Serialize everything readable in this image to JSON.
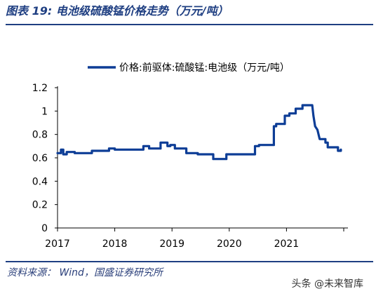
{
  "header": {
    "title": "图表 19:  电池级硫酸锰价格走势（万元/吨）"
  },
  "footer": {
    "source": "资料来源：  Wind，国盛证券研究所",
    "watermark": "头条 @未来智库"
  },
  "colors": {
    "line": "#0d3d96",
    "accent": "#1f3f82",
    "axis": "#000000"
  },
  "chart_data": {
    "type": "line",
    "title": "",
    "xlabel": "",
    "ylabel": "",
    "ylim": [
      0,
      1.2
    ],
    "yticks": [
      "0",
      "0.2",
      "0.4",
      "0.6",
      "0.8",
      "1",
      "1.2"
    ],
    "xlim": [
      2017,
      2022
    ],
    "xticks": [
      "2017",
      "2018",
      "2019",
      "2020",
      "2021"
    ],
    "grid": false,
    "legend_position": "top-center",
    "series": [
      {
        "name": "价格:前驱体:硫酸锰:电池级（万元/吨）",
        "points": [
          [
            2017.0,
            0.64
          ],
          [
            2017.06,
            0.64
          ],
          [
            2017.06,
            0.67
          ],
          [
            2017.1,
            0.67
          ],
          [
            2017.1,
            0.63
          ],
          [
            2017.16,
            0.63
          ],
          [
            2017.16,
            0.65
          ],
          [
            2017.3,
            0.65
          ],
          [
            2017.3,
            0.64
          ],
          [
            2017.6,
            0.64
          ],
          [
            2017.6,
            0.66
          ],
          [
            2017.9,
            0.66
          ],
          [
            2017.9,
            0.68
          ],
          [
            2018.0,
            0.68
          ],
          [
            2018.0,
            0.67
          ],
          [
            2018.5,
            0.67
          ],
          [
            2018.5,
            0.7
          ],
          [
            2018.6,
            0.7
          ],
          [
            2018.6,
            0.68
          ],
          [
            2018.8,
            0.68
          ],
          [
            2018.8,
            0.73
          ],
          [
            2018.92,
            0.73
          ],
          [
            2018.92,
            0.7
          ],
          [
            2018.97,
            0.7
          ],
          [
            2018.97,
            0.71
          ],
          [
            2019.05,
            0.71
          ],
          [
            2019.05,
            0.68
          ],
          [
            2019.25,
            0.68
          ],
          [
            2019.25,
            0.64
          ],
          [
            2019.45,
            0.64
          ],
          [
            2019.45,
            0.63
          ],
          [
            2019.72,
            0.63
          ],
          [
            2019.72,
            0.59
          ],
          [
            2019.95,
            0.59
          ],
          [
            2019.95,
            0.63
          ],
          [
            2020.45,
            0.63
          ],
          [
            2020.45,
            0.7
          ],
          [
            2020.52,
            0.7
          ],
          [
            2020.52,
            0.71
          ],
          [
            2020.78,
            0.71
          ],
          [
            2020.78,
            0.87
          ],
          [
            2020.82,
            0.87
          ],
          [
            2020.82,
            0.89
          ],
          [
            2020.97,
            0.89
          ],
          [
            2020.97,
            0.96
          ],
          [
            2021.05,
            0.96
          ],
          [
            2021.05,
            0.98
          ],
          [
            2021.16,
            0.98
          ],
          [
            2021.16,
            1.02
          ],
          [
            2021.28,
            1.02
          ],
          [
            2021.28,
            1.05
          ],
          [
            2021.45,
            1.05
          ],
          [
            2021.47,
            0.96
          ],
          [
            2021.5,
            0.87
          ],
          [
            2021.54,
            0.84
          ],
          [
            2021.58,
            0.76
          ],
          [
            2021.68,
            0.76
          ],
          [
            2021.68,
            0.73
          ],
          [
            2021.72,
            0.73
          ],
          [
            2021.72,
            0.69
          ],
          [
            2021.9,
            0.69
          ],
          [
            2021.9,
            0.66
          ],
          [
            2021.95,
            0.66
          ],
          [
            2021.95,
            0.67
          ]
        ]
      }
    ]
  }
}
